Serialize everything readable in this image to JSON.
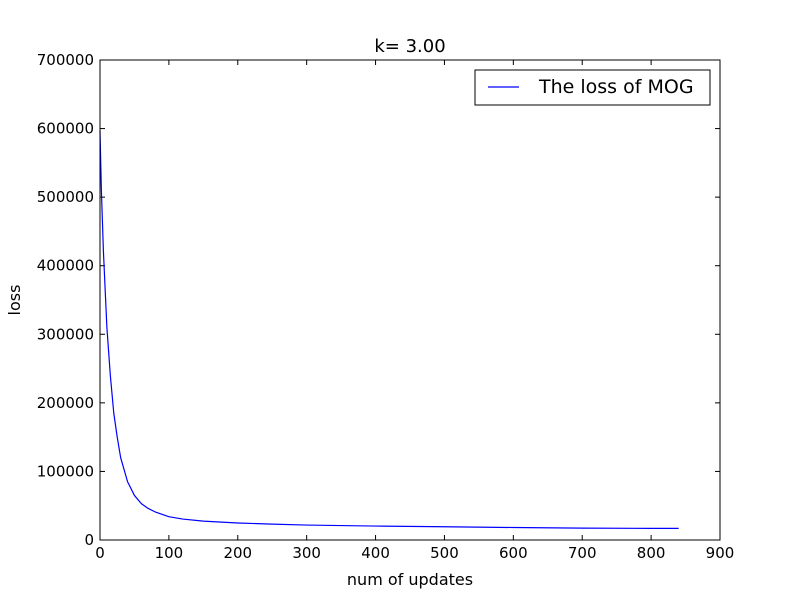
{
  "chart_data": {
    "type": "line",
    "title": "k= 3.00",
    "xlabel": "num of updates",
    "ylabel": "loss",
    "xlim": [
      0,
      900
    ],
    "ylim": [
      0,
      700000
    ],
    "xticks": [
      0,
      100,
      200,
      300,
      400,
      500,
      600,
      700,
      800,
      900
    ],
    "yticks": [
      0,
      100000,
      200000,
      300000,
      400000,
      500000,
      600000,
      700000
    ],
    "grid": false,
    "legend_position": "top-right",
    "series": [
      {
        "name": "The loss of MOG",
        "color": "#0000ff",
        "x": [
          0,
          2,
          5,
          10,
          15,
          20,
          25,
          30,
          40,
          50,
          60,
          70,
          80,
          100,
          120,
          150,
          200,
          250,
          300,
          400,
          500,
          600,
          700,
          800,
          840
        ],
        "y": [
          597000,
          510000,
          420000,
          310000,
          240000,
          185000,
          150000,
          120000,
          85000,
          65000,
          53000,
          46000,
          41000,
          34000,
          30500,
          27500,
          24800,
          23200,
          21800,
          20300,
          19300,
          18200,
          17300,
          17000,
          16900
        ]
      }
    ]
  }
}
